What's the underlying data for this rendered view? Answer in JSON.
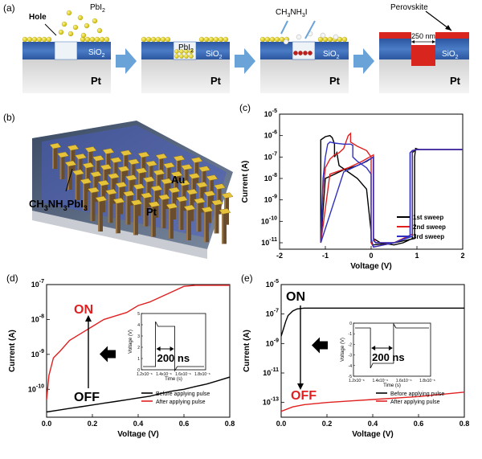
{
  "panel_a": {
    "label": "(a)",
    "step1": {
      "hole_label": "Hole",
      "precursor_label": "PbI",
      "precursor_sub": "2",
      "substrate_label": "Pt",
      "oxide_label": "SiO",
      "oxide_sub": "2"
    },
    "step2": {
      "fill_label": "PbI",
      "fill_sub": "2",
      "oxide_label": "SiO",
      "oxide_sub": "2",
      "substrate_label": "Pt"
    },
    "step3": {
      "reagent_label": "CH",
      "reagent_sub1": "3",
      "reagent_mid": "NH",
      "reagent_sub2": "3",
      "reagent_end": "I",
      "oxide_label": "SiO",
      "oxide_sub": "2",
      "substrate_label": "Pt"
    },
    "step4": {
      "product_label": "Perovskite",
      "width_label": "250 nm",
      "oxide_label": "SiO",
      "oxide_sub": "2",
      "substrate_label": "Pt"
    },
    "colors": {
      "oxide": "#3f6fb5",
      "substrate": "#e6e6e6",
      "ball": "#e0d020",
      "perovskite": "#d8261e",
      "arrow": "#6aa3d8"
    }
  },
  "panel_b": {
    "label": "(b)",
    "top_electrode": "Au",
    "material": "CH",
    "material_sub1": "3",
    "material_mid": "NH",
    "material_sub2": "3",
    "material_mid2": "PbI",
    "material_sub3": "3",
    "bottom_electrode": "Pt"
  },
  "chart_data": [
    {
      "id": "c",
      "label": "(c)",
      "type": "line",
      "xlabel": "Voltage (V)",
      "ylabel": "Current (A)",
      "xlim": [
        -2,
        2
      ],
      "ylim_exp": [
        -11.3,
        -5
      ],
      "yscale": "log",
      "x_ticks": [
        "-2",
        "-1",
        "0",
        "1",
        "2"
      ],
      "y_tick_exps": [
        -11,
        -10,
        -9,
        -8,
        -7,
        -6,
        -5
      ],
      "series": [
        {
          "name": "1st sweep",
          "color": "#000000",
          "x": [
            -1.1,
            -1.1,
            -1.0,
            -0.9,
            -0.85,
            -0.8,
            -0.8,
            -0.75,
            -0.7,
            -0.5,
            -0.3,
            -0.1,
            0.0,
            0.0,
            0.05,
            0.5,
            0.95,
            0.95,
            0.97,
            1.05,
            1.2,
            1.5,
            2.0,
            2.0,
            1.0,
            0.95,
            0.9,
            0.9,
            0.7,
            0.5,
            0.2,
            0.05,
            0.05,
            -0.1,
            -0.3,
            -0.6,
            -0.8,
            -1.0,
            -1.1
          ],
          "logy": [
            -11.0,
            -6.2,
            -6.05,
            -6.0,
            -6.1,
            -6.4,
            -7.0,
            -6.8,
            -7.4,
            -7.7,
            -8.0,
            -8.5,
            -10.5,
            -11.0,
            -11.1,
            -11.0,
            -10.8,
            -7.0,
            -6.6,
            -6.65,
            -6.65,
            -6.65,
            -6.65,
            -6.65,
            -6.65,
            -6.7,
            -6.8,
            -10.8,
            -11.0,
            -11.1,
            -11.0,
            -10.8,
            -7.0,
            -7.2,
            -7.4,
            -7.6,
            -7.8,
            -8.0,
            -11.0
          ]
        },
        {
          "name": "2nd sweep",
          "color": "#e02020",
          "x": [
            -1.1,
            -1.05,
            -1.0,
            -0.9,
            -0.8,
            -0.7,
            -0.6,
            -0.5,
            -0.45,
            -0.45,
            -0.3,
            -0.1,
            0.0,
            0.0,
            0.05,
            0.5,
            0.9,
            0.9,
            1.0,
            2.0,
            1.0,
            0.9,
            0.85,
            0.85,
            0.5,
            0.1,
            0.05,
            0.05,
            -0.2,
            -0.5,
            -0.9,
            -1.1
          ],
          "logy": [
            -11.0,
            -8.5,
            -7.5,
            -7.1,
            -6.9,
            -6.8,
            -6.6,
            -6.0,
            -5.9,
            -6.3,
            -6.5,
            -6.7,
            -7.0,
            -11.0,
            -11.2,
            -11.0,
            -10.6,
            -6.7,
            -6.65,
            -6.65,
            -6.65,
            -6.7,
            -6.8,
            -10.7,
            -11.0,
            -11.0,
            -10.8,
            -6.9,
            -7.2,
            -7.5,
            -7.8,
            -11.0
          ]
        },
        {
          "name": "3rd sweep",
          "color": "#3030c0",
          "x": [
            -1.1,
            -1.05,
            -1.0,
            -0.95,
            -0.9,
            -0.8,
            -0.6,
            -0.45,
            -0.4,
            -0.4,
            -0.3,
            -0.1,
            0.0,
            0.0,
            0.05,
            0.5,
            0.9,
            0.9,
            1.0,
            2.0,
            1.0,
            0.9,
            0.85,
            0.85,
            0.5,
            0.1,
            0.05,
            0.05,
            -0.2,
            -0.6,
            -1.1
          ],
          "logy": [
            -11.0,
            -8.0,
            -7.0,
            -6.4,
            -6.3,
            -6.35,
            -6.4,
            -6.4,
            -6.45,
            -7.0,
            -7.2,
            -7.5,
            -7.8,
            -10.8,
            -11.2,
            -11.0,
            -10.7,
            -6.7,
            -6.65,
            -6.65,
            -6.65,
            -6.7,
            -6.8,
            -10.7,
            -11.0,
            -11.0,
            -10.9,
            -7.0,
            -7.3,
            -7.7,
            -11.0
          ]
        }
      ]
    },
    {
      "id": "d",
      "label": "(d)",
      "type": "line",
      "xlabel": "Voltage (V)",
      "ylabel": "Current (A)",
      "xlim": [
        0,
        0.8
      ],
      "ylim_exp": [
        -10.8,
        -7
      ],
      "yscale": "log",
      "x_ticks": [
        "0.0",
        "0.2",
        "0.4",
        "0.6",
        "0.8"
      ],
      "y_tick_exps": [
        -10,
        -9,
        -8,
        -7
      ],
      "annot_on": "ON",
      "annot_off": "OFF",
      "series": [
        {
          "name": "Before applying pulse",
          "color": "#000000",
          "x": [
            0.0,
            0.05,
            0.1,
            0.15,
            0.2,
            0.25,
            0.3,
            0.35,
            0.4,
            0.45,
            0.5,
            0.55,
            0.6,
            0.65,
            0.7,
            0.75,
            0.8
          ],
          "logy": [
            -10.65,
            -10.6,
            -10.55,
            -10.5,
            -10.45,
            -10.4,
            -10.35,
            -10.3,
            -10.25,
            -10.2,
            -10.12,
            -10.05,
            -10.0,
            -9.92,
            -9.85,
            -9.75,
            -9.65
          ]
        },
        {
          "name": "After applying pulse",
          "color": "#e02020",
          "x": [
            0.0,
            0.01,
            0.03,
            0.06,
            0.1,
            0.15,
            0.2,
            0.25,
            0.3,
            0.35,
            0.4,
            0.45,
            0.5,
            0.55,
            0.6,
            0.65,
            0.7,
            0.75,
            0.8
          ],
          "logy": [
            -10.3,
            -9.6,
            -9.1,
            -8.9,
            -8.6,
            -8.4,
            -8.2,
            -8.0,
            -7.9,
            -7.8,
            -7.6,
            -7.5,
            -7.35,
            -7.2,
            -7.05,
            -7.02,
            -7.02,
            -7.02,
            -7.02
          ]
        }
      ],
      "inset": {
        "xlabel": "Time (s)",
        "ylabel": "Voltage (V)",
        "y_ticks": [
          "0",
          "1",
          "2",
          "3",
          "4",
          "5"
        ],
        "x_ticks": [
          "1.2x10⁻⁶",
          "1.4x10⁻⁶",
          "1.6x10⁻⁶",
          "1.8x10⁻⁶"
        ],
        "pulse_label": "200 ns",
        "pulse_sign": 1
      }
    },
    {
      "id": "e",
      "label": "(e)",
      "type": "line",
      "xlabel": "Voltage (V)",
      "ylabel": "Current (A)",
      "xlim": [
        0,
        0.8
      ],
      "ylim_exp": [
        -14,
        -5
      ],
      "yscale": "log",
      "x_ticks": [
        "0.0",
        "0.2",
        "0.4",
        "0.6",
        "0.8"
      ],
      "y_tick_exps": [
        -13,
        -11,
        -9,
        -7,
        -5
      ],
      "annot_on": "ON",
      "annot_off": "OFF",
      "series": [
        {
          "name": "Before applying pulse",
          "color": "#000000",
          "x": [
            0.0,
            0.01,
            0.02,
            0.03,
            0.05,
            0.07,
            0.1,
            0.2,
            0.4,
            0.6,
            0.8
          ],
          "logy": [
            -8.5,
            -8.0,
            -7.5,
            -7.1,
            -6.8,
            -6.65,
            -6.6,
            -6.6,
            -6.6,
            -6.6,
            -6.6
          ]
        },
        {
          "name": "After applying pulse",
          "color": "#e02020",
          "x": [
            0.0,
            0.05,
            0.1,
            0.2,
            0.3,
            0.4,
            0.5,
            0.6,
            0.7,
            0.8
          ],
          "logy": [
            -13.6,
            -13.3,
            -13.15,
            -13.0,
            -12.9,
            -12.8,
            -12.7,
            -12.6,
            -12.45,
            -12.3
          ]
        }
      ],
      "inset": {
        "xlabel": "Time (s)",
        "ylabel": "Voltage (V)",
        "y_ticks": [
          "0",
          "-1",
          "-2",
          "-3",
          "-4",
          "-5"
        ],
        "x_ticks": [
          "1.2x10⁻⁶",
          "1.4x10⁻⁶",
          "1.6x10⁻⁶",
          "1.8x10⁻⁶"
        ],
        "pulse_label": "200 ns",
        "pulse_sign": -1
      }
    }
  ]
}
